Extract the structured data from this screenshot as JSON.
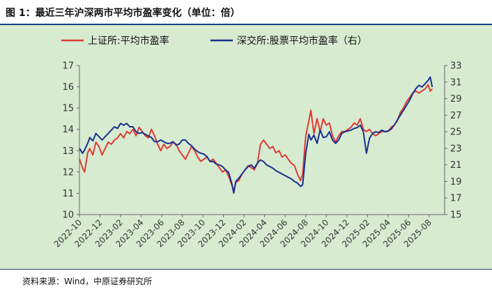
{
  "title": "图 1：最近三年沪深两市平均市盈率变化（单位：倍）",
  "source": "资料来源：Wind，中原证券研究所",
  "colors": {
    "series_sh": "#e03a32",
    "series_sz": "#1a2f8c",
    "background": "#d7ebd1",
    "frame": "#1f3f80"
  },
  "chart_data": {
    "type": "line",
    "title": "最近三年沪深两市平均市盈率变化（单位：倍）",
    "x_ticks": [
      "2022-10",
      "2022-12",
      "2023-02",
      "2023-04",
      "2023-06",
      "2023-08",
      "2023-10",
      "2023-12",
      "2024-02",
      "2024-04",
      "2024-06",
      "2024-08",
      "2024-10",
      "2024-12",
      "2025-02",
      "2025-04",
      "2025-06",
      "2025-08"
    ],
    "x_range": [
      0,
      35.5
    ],
    "legend_position": "top",
    "y_left": {
      "label": "",
      "range": [
        10,
        17
      ],
      "ticks": [
        10,
        11,
        12,
        13,
        14,
        15,
        16,
        17
      ]
    },
    "y_right": {
      "label": "",
      "range": [
        15,
        33
      ],
      "ticks": [
        15,
        17,
        19,
        21,
        23,
        25,
        27,
        29,
        31,
        33
      ]
    },
    "series": [
      {
        "name": "上证所:平均市盈率",
        "axis": "left",
        "points": [
          [
            0.0,
            12.6
          ],
          [
            0.3,
            12.2
          ],
          [
            0.5,
            12.0
          ],
          [
            0.8,
            12.9
          ],
          [
            1.0,
            13.1
          ],
          [
            1.3,
            12.8
          ],
          [
            1.6,
            13.4
          ],
          [
            1.9,
            13.2
          ],
          [
            2.2,
            12.8
          ],
          [
            2.5,
            13.1
          ],
          [
            2.8,
            13.4
          ],
          [
            3.1,
            13.3
          ],
          [
            3.4,
            13.5
          ],
          [
            3.7,
            13.6
          ],
          [
            4.0,
            13.8
          ],
          [
            4.3,
            13.6
          ],
          [
            4.6,
            13.9
          ],
          [
            4.9,
            13.8
          ],
          [
            5.2,
            14.0
          ],
          [
            5.5,
            13.7
          ],
          [
            5.8,
            14.1
          ],
          [
            6.1,
            13.9
          ],
          [
            6.4,
            13.7
          ],
          [
            6.7,
            13.6
          ],
          [
            7.0,
            14.0
          ],
          [
            7.3,
            13.7
          ],
          [
            7.6,
            13.3
          ],
          [
            7.9,
            13.0
          ],
          [
            8.2,
            13.3
          ],
          [
            8.5,
            13.1
          ],
          [
            8.8,
            13.2
          ],
          [
            9.1,
            13.4
          ],
          [
            9.4,
            13.3
          ],
          [
            9.7,
            13.0
          ],
          [
            10.0,
            12.8
          ],
          [
            10.3,
            12.6
          ],
          [
            10.6,
            12.9
          ],
          [
            10.9,
            13.2
          ],
          [
            11.2,
            13.0
          ],
          [
            11.5,
            12.7
          ],
          [
            11.8,
            12.5
          ],
          [
            12.1,
            12.6
          ],
          [
            12.4,
            12.7
          ],
          [
            12.7,
            12.5
          ],
          [
            13.0,
            12.6
          ],
          [
            13.3,
            12.4
          ],
          [
            13.6,
            12.2
          ],
          [
            13.9,
            12.0
          ],
          [
            14.2,
            12.1
          ],
          [
            14.5,
            11.8
          ],
          [
            14.8,
            11.4
          ],
          [
            15.0,
            11.1
          ],
          [
            15.2,
            11.5
          ],
          [
            15.5,
            11.6
          ],
          [
            15.8,
            11.9
          ],
          [
            16.1,
            12.1
          ],
          [
            16.4,
            12.3
          ],
          [
            16.7,
            12.2
          ],
          [
            17.0,
            12.1
          ],
          [
            17.3,
            12.4
          ],
          [
            17.6,
            13.3
          ],
          [
            17.9,
            13.5
          ],
          [
            18.2,
            13.3
          ],
          [
            18.5,
            13.1
          ],
          [
            18.8,
            13.2
          ],
          [
            19.1,
            12.9
          ],
          [
            19.4,
            13.0
          ],
          [
            19.7,
            12.7
          ],
          [
            20.0,
            12.8
          ],
          [
            20.3,
            12.6
          ],
          [
            20.6,
            12.4
          ],
          [
            20.9,
            12.3
          ],
          [
            21.2,
            11.9
          ],
          [
            21.5,
            11.6
          ],
          [
            21.7,
            11.9
          ],
          [
            22.0,
            13.7
          ],
          [
            22.3,
            14.4
          ],
          [
            22.5,
            14.9
          ],
          [
            22.8,
            13.8
          ],
          [
            23.1,
            14.5
          ],
          [
            23.4,
            13.9
          ],
          [
            23.7,
            14.5
          ],
          [
            24.0,
            14.2
          ],
          [
            24.3,
            14.3
          ],
          [
            24.6,
            13.7
          ],
          [
            24.9,
            13.4
          ],
          [
            25.2,
            13.7
          ],
          [
            25.5,
            13.9
          ],
          [
            25.8,
            13.9
          ],
          [
            26.1,
            14.0
          ],
          [
            26.4,
            14.1
          ],
          [
            26.7,
            14.3
          ],
          [
            27.0,
            14.2
          ],
          [
            27.3,
            14.5
          ],
          [
            27.6,
            14.0
          ],
          [
            27.9,
            13.9
          ],
          [
            28.2,
            14.0
          ],
          [
            28.5,
            13.8
          ],
          [
            28.8,
            13.7
          ],
          [
            29.1,
            13.8
          ],
          [
            29.4,
            13.9
          ],
          [
            29.7,
            13.9
          ],
          [
            30.0,
            13.9
          ],
          [
            30.3,
            14.1
          ],
          [
            30.6,
            14.2
          ],
          [
            30.9,
            14.4
          ],
          [
            31.2,
            14.8
          ],
          [
            31.5,
            15.0
          ],
          [
            31.8,
            15.3
          ],
          [
            32.1,
            15.5
          ],
          [
            32.4,
            15.7
          ],
          [
            32.7,
            15.8
          ],
          [
            33.0,
            15.7
          ],
          [
            33.3,
            15.8
          ],
          [
            33.6,
            15.9
          ],
          [
            33.9,
            16.1
          ],
          [
            34.1,
            15.8
          ],
          [
            34.3,
            15.9
          ]
        ]
      },
      {
        "name": "深交所:股票平均市盈率（右）",
        "axis": "right",
        "points": [
          [
            0.0,
            23.0
          ],
          [
            0.3,
            22.4
          ],
          [
            0.5,
            22.8
          ],
          [
            0.8,
            23.6
          ],
          [
            1.0,
            24.3
          ],
          [
            1.3,
            23.9
          ],
          [
            1.6,
            24.8
          ],
          [
            1.9,
            24.4
          ],
          [
            2.2,
            24.0
          ],
          [
            2.5,
            24.4
          ],
          [
            2.8,
            24.8
          ],
          [
            3.1,
            25.2
          ],
          [
            3.4,
            25.6
          ],
          [
            3.7,
            25.4
          ],
          [
            4.0,
            26.0
          ],
          [
            4.3,
            25.8
          ],
          [
            4.6,
            26.0
          ],
          [
            4.9,
            25.6
          ],
          [
            5.2,
            25.6
          ],
          [
            5.5,
            25.0
          ],
          [
            5.8,
            24.8
          ],
          [
            6.1,
            24.9
          ],
          [
            6.4,
            24.7
          ],
          [
            6.7,
            24.5
          ],
          [
            7.0,
            24.3
          ],
          [
            7.3,
            23.8
          ],
          [
            7.6,
            23.8
          ],
          [
            7.9,
            24.0
          ],
          [
            8.2,
            23.8
          ],
          [
            8.5,
            23.6
          ],
          [
            8.8,
            23.6
          ],
          [
            9.1,
            23.8
          ],
          [
            9.4,
            23.4
          ],
          [
            9.7,
            23.5
          ],
          [
            10.0,
            24.0
          ],
          [
            10.3,
            24.0
          ],
          [
            10.6,
            23.6
          ],
          [
            10.9,
            23.3
          ],
          [
            11.2,
            22.9
          ],
          [
            11.5,
            22.6
          ],
          [
            11.8,
            22.4
          ],
          [
            12.1,
            22.3
          ],
          [
            12.4,
            22.0
          ],
          [
            12.7,
            21.4
          ],
          [
            13.0,
            21.4
          ],
          [
            13.3,
            21.1
          ],
          [
            13.6,
            21.0
          ],
          [
            13.9,
            20.8
          ],
          [
            14.2,
            20.4
          ],
          [
            14.5,
            20.1
          ],
          [
            14.8,
            18.8
          ],
          [
            15.0,
            17.6
          ],
          [
            15.2,
            19.0
          ],
          [
            15.5,
            19.4
          ],
          [
            15.8,
            19.9
          ],
          [
            16.1,
            20.4
          ],
          [
            16.4,
            20.8
          ],
          [
            16.7,
            21.0
          ],
          [
            17.0,
            20.6
          ],
          [
            17.3,
            21.2
          ],
          [
            17.6,
            21.6
          ],
          [
            17.9,
            21.4
          ],
          [
            18.2,
            21.0
          ],
          [
            18.5,
            20.8
          ],
          [
            18.8,
            20.6
          ],
          [
            19.1,
            20.3
          ],
          [
            19.4,
            20.1
          ],
          [
            19.7,
            19.9
          ],
          [
            20.0,
            19.7
          ],
          [
            20.3,
            19.5
          ],
          [
            20.6,
            19.3
          ],
          [
            20.9,
            19.0
          ],
          [
            21.2,
            18.8
          ],
          [
            21.5,
            18.4
          ],
          [
            21.7,
            18.6
          ],
          [
            22.0,
            22.4
          ],
          [
            22.3,
            24.7
          ],
          [
            22.5,
            24.0
          ],
          [
            22.8,
            24.6
          ],
          [
            23.1,
            23.6
          ],
          [
            23.4,
            25.2
          ],
          [
            23.7,
            24.3
          ],
          [
            24.0,
            24.4
          ],
          [
            24.3,
            25.0
          ],
          [
            24.6,
            24.0
          ],
          [
            24.9,
            23.6
          ],
          [
            25.2,
            24.0
          ],
          [
            25.5,
            24.8
          ],
          [
            25.8,
            25.0
          ],
          [
            26.1,
            25.1
          ],
          [
            26.4,
            25.2
          ],
          [
            26.7,
            25.4
          ],
          [
            27.0,
            25.5
          ],
          [
            27.3,
            25.8
          ],
          [
            27.6,
            25.0
          ],
          [
            27.9,
            22.4
          ],
          [
            28.2,
            24.2
          ],
          [
            28.5,
            24.8
          ],
          [
            28.8,
            25.0
          ],
          [
            29.1,
            24.9
          ],
          [
            29.4,
            25.2
          ],
          [
            29.7,
            25.0
          ],
          [
            30.0,
            25.1
          ],
          [
            30.3,
            25.3
          ],
          [
            30.6,
            25.8
          ],
          [
            30.9,
            26.4
          ],
          [
            31.2,
            27.0
          ],
          [
            31.5,
            27.6
          ],
          [
            31.8,
            28.2
          ],
          [
            32.1,
            28.8
          ],
          [
            32.4,
            29.6
          ],
          [
            32.7,
            30.2
          ],
          [
            33.0,
            30.6
          ],
          [
            33.3,
            30.4
          ],
          [
            33.6,
            30.8
          ],
          [
            33.9,
            31.2
          ],
          [
            34.1,
            31.6
          ],
          [
            34.3,
            30.4
          ]
        ]
      }
    ]
  }
}
